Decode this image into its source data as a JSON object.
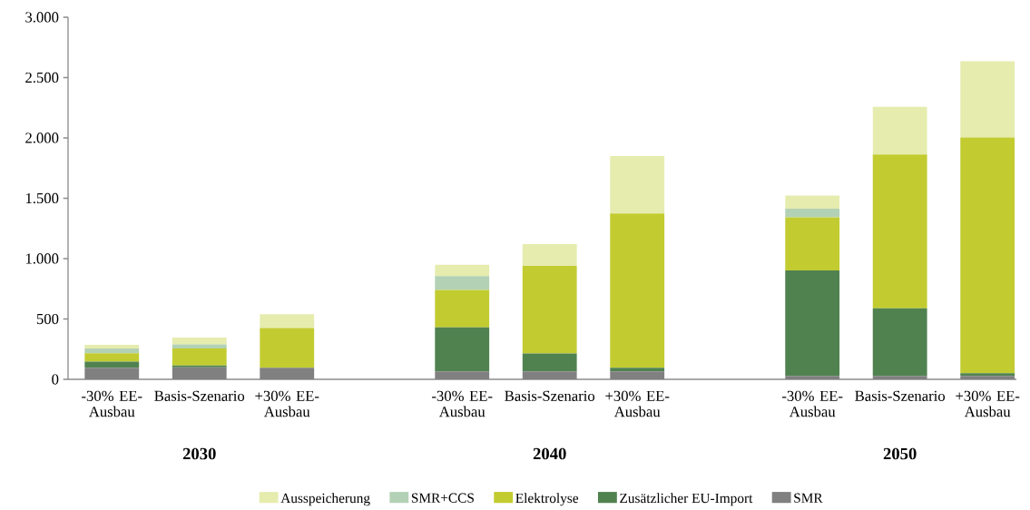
{
  "chart_data": {
    "type": "bar",
    "stacked": true,
    "categories": [
      "-30% EE-Ausbau",
      "Basis-Szenario",
      "+30% EE-Ausbau",
      null,
      "-30% EE-Ausbau",
      "Basis-Szenario",
      "+30% EE-Ausbau",
      null,
      "-30% EE-Ausbau",
      "Basis-Szenario",
      "+30% EE-Ausbau"
    ],
    "series": [
      {
        "name": "SMR",
        "color": "#808080",
        "values": [
          96,
          100,
          95,
          null,
          65,
          65,
          65,
          null,
          28,
          28,
          28
        ]
      },
      {
        "name": "Zusätzlicher EU-Import",
        "color": "#508250",
        "values": [
          50,
          15,
          0,
          null,
          365,
          150,
          30,
          null,
          875,
          560,
          22
        ]
      },
      {
        "name": "Elektrolyse",
        "color": "#c2cc30",
        "values": [
          70,
          140,
          330,
          null,
          310,
          725,
          1280,
          null,
          440,
          1275,
          1953
        ]
      },
      {
        "name": "SMR+CCS",
        "color": "#b3d1b5",
        "values": [
          40,
          35,
          0,
          null,
          115,
          0,
          0,
          null,
          70,
          0,
          0
        ]
      },
      {
        "name": "Ausspeicherung",
        "color": "#e6ecae",
        "values": [
          30,
          55,
          115,
          null,
          95,
          180,
          475,
          null,
          110,
          395,
          633
        ]
      }
    ],
    "ylim": [
      0,
      3000
    ],
    "yticks": [
      0,
      {
        "value": 500,
        "label": "500"
      },
      {
        "value": 1000,
        "label": "1.000"
      },
      {
        "value": 1500,
        "label": "1.500"
      },
      {
        "value": 2000,
        "label": "2.000"
      },
      {
        "value": 2500,
        "label": "2.500"
      },
      {
        "value": 3000,
        "label": "3.000"
      }
    ],
    "grid": false,
    "legend": "bottom",
    "annotations": [
      "2030",
      "2040",
      "2050"
    ]
  }
}
